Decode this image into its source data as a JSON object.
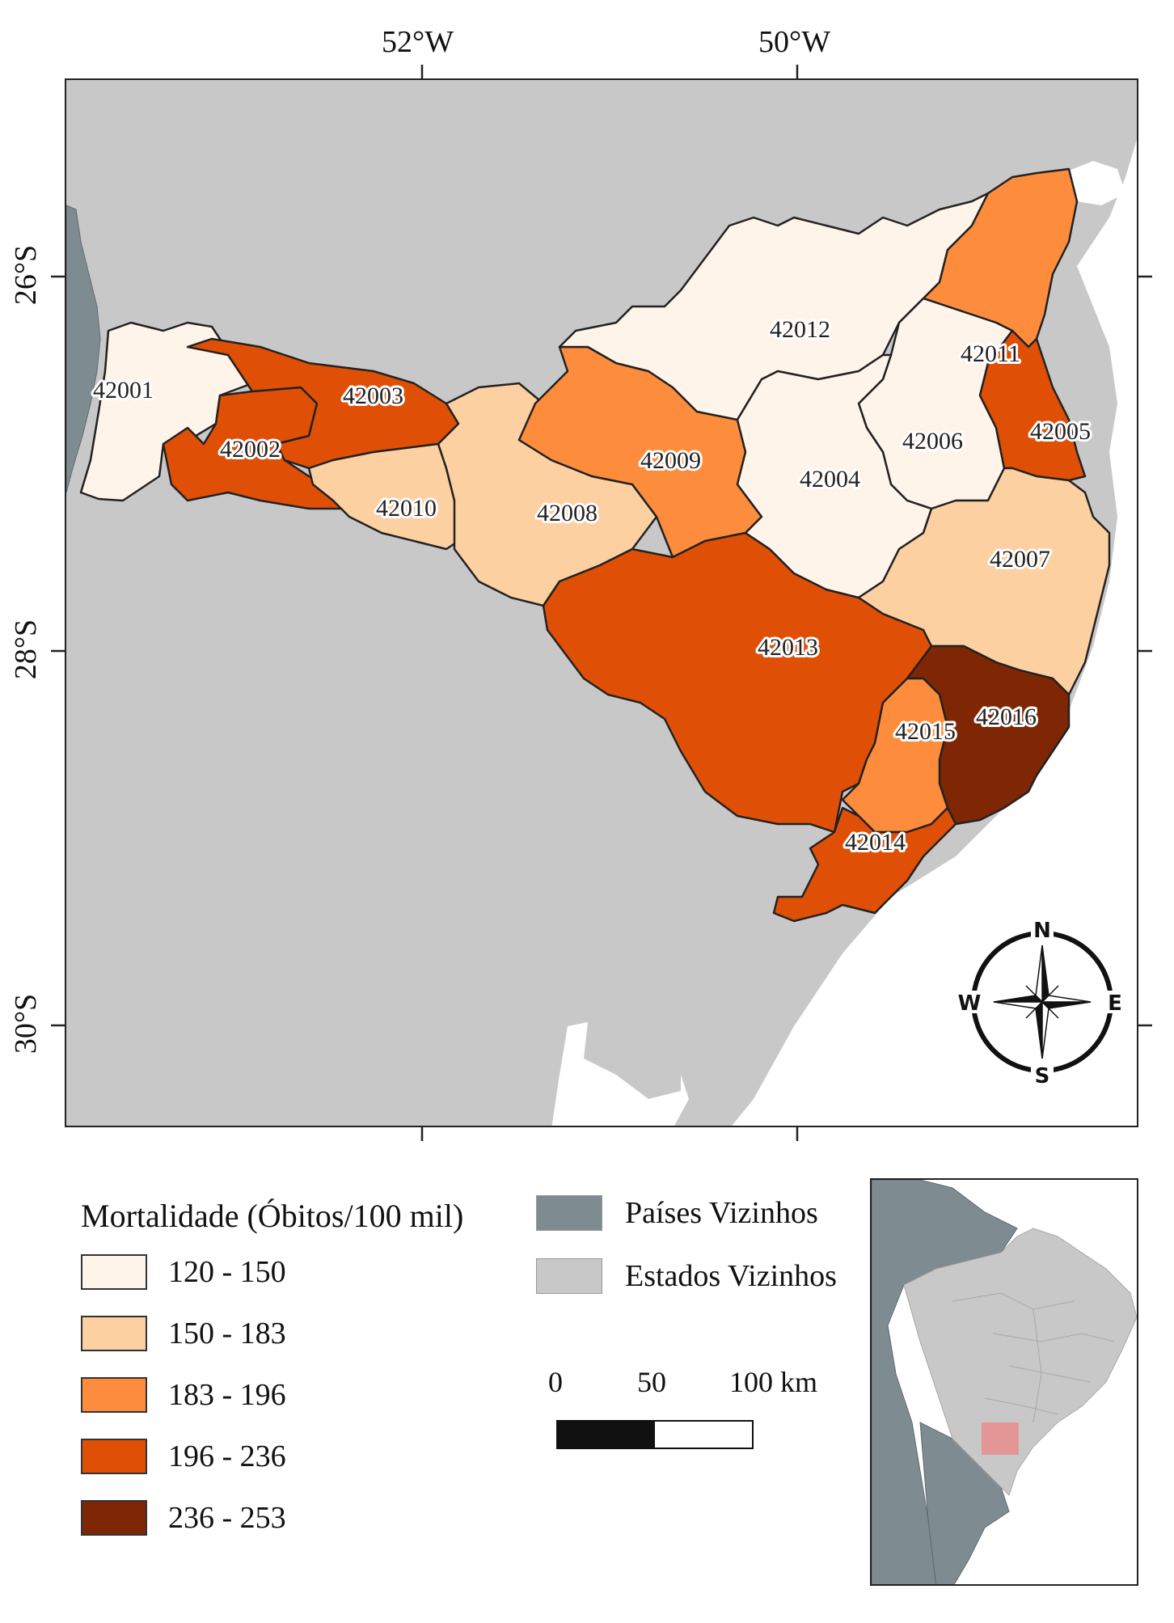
{
  "axes": {
    "top_lon": [
      "52°W",
      "50°W"
    ],
    "left_lat": [
      "26°S",
      "28°S",
      "30°S"
    ]
  },
  "regions": [
    {
      "code": "42001",
      "class": 0
    },
    {
      "code": "42002",
      "class": 3
    },
    {
      "code": "42003",
      "class": 3
    },
    {
      "code": "42004",
      "class": 0
    },
    {
      "code": "42005",
      "class": 3
    },
    {
      "code": "42006",
      "class": 0
    },
    {
      "code": "42007",
      "class": 1
    },
    {
      "code": "42008",
      "class": 1
    },
    {
      "code": "42009",
      "class": 2
    },
    {
      "code": "42010",
      "class": 1
    },
    {
      "code": "42011",
      "class": 2
    },
    {
      "code": "42012",
      "class": 0
    },
    {
      "code": "42013",
      "class": 3
    },
    {
      "code": "42014",
      "class": 3
    },
    {
      "code": "42015",
      "class": 2
    },
    {
      "code": "42016",
      "class": 4
    }
  ],
  "legend": {
    "title": "Mortalidade (Óbitos/100 mil)",
    "classes": [
      {
        "label": "120 - 150",
        "color": "#fef4ea"
      },
      {
        "label": "150 - 183",
        "color": "#fdd0a2"
      },
      {
        "label": "183 - 196",
        "color": "#fd8d3c"
      },
      {
        "label": "196 - 236",
        "color": "#e04f06"
      },
      {
        "label": "236 - 253",
        "color": "#7f2704"
      }
    ],
    "neighbors": [
      {
        "label": "Países Vizinhos",
        "color": "#7e8b91"
      },
      {
        "label": "Estados Vizinhos",
        "color": "#c8c8c8"
      }
    ]
  },
  "scale_bar": {
    "labels": [
      "0",
      "50",
      "100 km"
    ]
  },
  "compass": {
    "n": "N",
    "s": "S",
    "e": "E",
    "w": "W"
  },
  "colors": {
    "ocean": "#ffffff",
    "border": "#222222",
    "inset_highlight": "#f08080"
  }
}
